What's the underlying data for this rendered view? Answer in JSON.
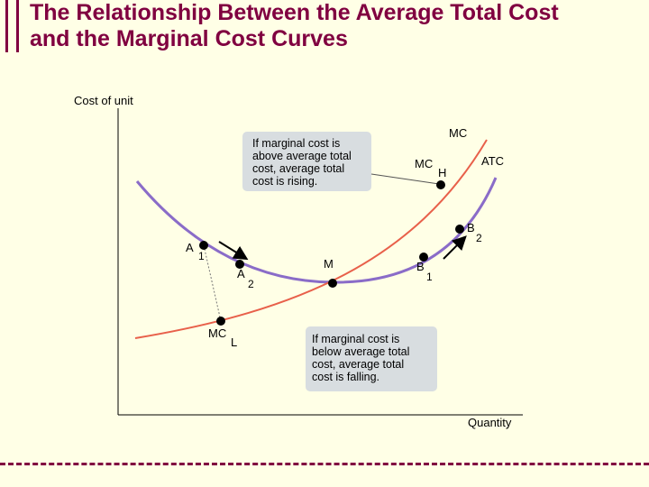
{
  "title": {
    "line1": "The Relationship Between the Average Total Cost",
    "line2": "and the Marginal Cost Curves"
  },
  "colors": {
    "title": "#800040",
    "background": "#ffffe6",
    "atc_curve": "#8a6cc8",
    "mc_curve": "#e8604a",
    "callout_box": "#d8dde0"
  },
  "axes": {
    "y_label": "Cost of unit",
    "x_label": "Quantity"
  },
  "curves": {
    "mc_top": "MC",
    "atc": "ATC"
  },
  "points": {
    "a1": {
      "letter": "A",
      "sub": "1"
    },
    "a2": {
      "letter": "A",
      "sub": "2"
    },
    "m": {
      "letter": "M"
    },
    "b1": {
      "letter": "B",
      "sub": "1"
    },
    "b2": {
      "letter": "B",
      "sub": "2"
    },
    "mch": {
      "letter": "MC",
      "sub": "H"
    },
    "mcl": {
      "letter": "MC",
      "sub": "L"
    }
  },
  "notes": {
    "above": [
      "If marginal cost is",
      "above average total",
      "cost, average total",
      "cost is rising."
    ],
    "below": [
      "If marginal cost is",
      "below average total",
      "cost, average total",
      "cost is falling."
    ]
  }
}
